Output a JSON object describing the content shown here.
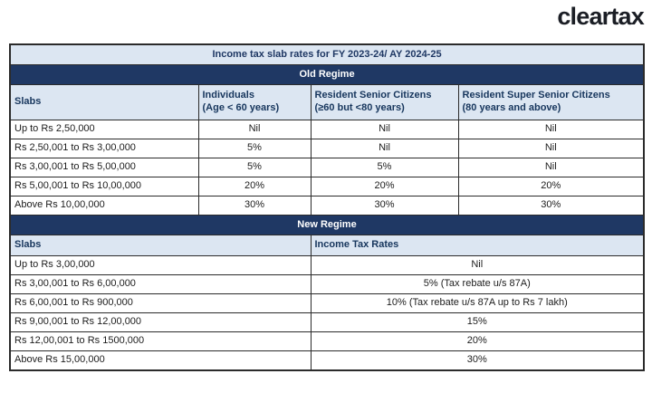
{
  "logo": {
    "text": "cleartax",
    "color": "#1b1e25"
  },
  "colors": {
    "section_bar_bg": "#1f3864",
    "header_bg": "#dce6f2",
    "header_text": "#17365d",
    "grid_border": "#2b2b2b",
    "row_bg": "#ffffff"
  },
  "table": {
    "title": "Income tax slab rates for FY 2023-24/ AY 2024-25",
    "old_regime": {
      "section_label": "Old Regime",
      "columns": [
        "Slabs",
        "Individuals\n(Age < 60 years)",
        "Resident Senior Citizens\n(≥60 but <80 years)",
        "Resident Super Senior Citizens\n(80 years and above)"
      ],
      "rows": [
        [
          "Up to Rs 2,50,000",
          "Nil",
          "Nil",
          "Nil"
        ],
        [
          "Rs 2,50,001 to Rs 3,00,000",
          "5%",
          "Nil",
          "Nil"
        ],
        [
          "Rs 3,00,001 to Rs 5,00,000",
          "5%",
          "5%",
          "Nil"
        ],
        [
          "Rs 5,00,001 to Rs 10,00,000",
          "20%",
          "20%",
          "20%"
        ],
        [
          "Above Rs 10,00,000",
          "30%",
          "30%",
          "30%"
        ]
      ]
    },
    "new_regime": {
      "section_label": "New Regime",
      "columns": [
        "Slabs",
        "Income Tax Rates"
      ],
      "rows": [
        [
          "Up to Rs 3,00,000",
          "Nil"
        ],
        [
          "Rs 3,00,001 to Rs 6,00,000",
          "5% (Tax rebate  u/s 87A)"
        ],
        [
          "Rs 6,00,001 to Rs 900,000",
          "10% (Tax rebate u/s 87A up to Rs 7 lakh)"
        ],
        [
          "Rs 9,00,001 to Rs 12,00,000",
          "15%"
        ],
        [
          "Rs 12,00,001 to Rs 1500,000",
          "20%"
        ],
        [
          "Above Rs 15,00,000",
          "30%"
        ]
      ]
    }
  }
}
